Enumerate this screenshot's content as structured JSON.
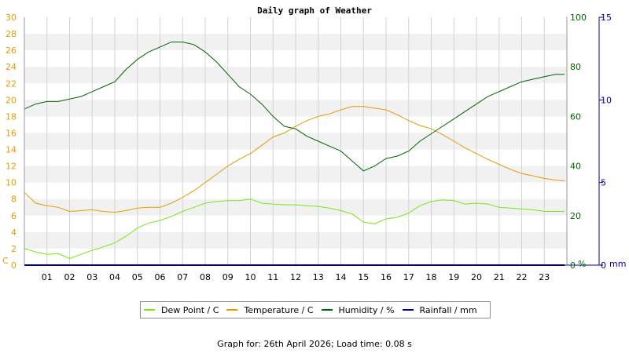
{
  "title": "Daily graph of Weather",
  "footer": "Graph for: 26th April 2026; Load time: 0.08 s",
  "colors": {
    "dew": "#77e61a",
    "temp": "#e69a00",
    "hum": "#006400",
    "rain": "#000099",
    "band": "#f1f1f1",
    "grid": "#d3d3d3"
  },
  "chart_data": {
    "type": "line",
    "title": "Daily graph of Weather",
    "xlabel": "",
    "x_range": [
      0,
      24
    ],
    "x_ticks": [
      "01",
      "02",
      "03",
      "04",
      "05",
      "06",
      "07",
      "08",
      "09",
      "10",
      "11",
      "12",
      "13",
      "14",
      "15",
      "16",
      "17",
      "18",
      "19",
      "20",
      "21",
      "22",
      "23"
    ],
    "axes": {
      "left": {
        "unit": "C",
        "range": [
          0,
          30
        ],
        "ticks": [
          "0",
          "2",
          "4",
          "6",
          "8",
          "10",
          "12",
          "14",
          "16",
          "18",
          "20",
          "22",
          "24",
          "26",
          "28",
          "30"
        ]
      },
      "middle": {
        "unit": "%",
        "range": [
          0,
          100
        ],
        "ticks": [
          "0",
          "20",
          "40",
          "60",
          "80",
          "100"
        ]
      },
      "right": {
        "unit": "mm",
        "range": [
          0,
          15
        ],
        "ticks": [
          "0",
          "5",
          "10",
          "15"
        ]
      }
    },
    "grid": true,
    "legend_position": "bottom",
    "series": [
      {
        "name": "Dew Point / C",
        "axis": "left",
        "color": "#77e61a",
        "x": [
          0,
          0.5,
          1,
          1.5,
          2,
          2.5,
          3,
          3.5,
          4,
          4.5,
          5,
          5.5,
          6,
          6.5,
          7,
          7.5,
          8,
          8.5,
          9,
          9.5,
          10,
          10.5,
          11,
          11.5,
          12,
          12.5,
          13,
          13.5,
          14,
          14.5,
          15,
          15.5,
          16,
          16.5,
          17,
          17.5,
          18,
          18.5,
          19,
          19.5,
          20,
          20.5,
          21,
          21.5,
          22,
          22.5,
          23,
          23.5,
          23.9
        ],
        "y": [
          2.0,
          1.6,
          1.3,
          1.4,
          0.8,
          1.3,
          1.8,
          2.2,
          2.7,
          3.5,
          4.5,
          5.1,
          5.4,
          5.9,
          6.5,
          7.0,
          7.5,
          7.7,
          7.8,
          7.8,
          8.0,
          7.5,
          7.4,
          7.3,
          7.3,
          7.2,
          7.1,
          6.9,
          6.6,
          6.2,
          5.2,
          5.0,
          5.6,
          5.8,
          6.3,
          7.2,
          7.7,
          7.9,
          7.8,
          7.4,
          7.5,
          7.4,
          7.0,
          6.9,
          6.8,
          6.7,
          6.5,
          6.5,
          6.5
        ]
      },
      {
        "name": "Temperature / C",
        "axis": "left",
        "color": "#e69a00",
        "x": [
          0,
          0.5,
          1,
          1.5,
          2,
          2.5,
          3,
          3.5,
          4,
          4.5,
          5,
          5.5,
          6,
          6.5,
          7,
          7.5,
          8,
          8.5,
          9,
          9.5,
          10,
          10.5,
          11,
          11.5,
          12,
          12.5,
          13,
          13.5,
          14,
          14.5,
          15,
          15.5,
          16,
          16.5,
          17,
          17.5,
          18,
          18.5,
          19,
          19.5,
          20,
          20.5,
          21,
          21.5,
          22,
          22.5,
          23,
          23.5,
          23.9
        ],
        "y": [
          8.8,
          7.5,
          7.2,
          7.0,
          6.5,
          6.6,
          6.7,
          6.5,
          6.4,
          6.6,
          6.9,
          7.0,
          7.0,
          7.5,
          8.2,
          9.0,
          10.0,
          11.0,
          12.0,
          12.8,
          13.5,
          14.5,
          15.5,
          16.0,
          16.8,
          17.5,
          18.0,
          18.3,
          18.8,
          19.2,
          19.2,
          19.0,
          18.8,
          18.2,
          17.5,
          16.9,
          16.5,
          15.8,
          15.0,
          14.2,
          13.5,
          12.8,
          12.2,
          11.6,
          11.1,
          10.8,
          10.5,
          10.3,
          10.2
        ]
      },
      {
        "name": "Humidity / %",
        "axis": "middle",
        "color": "#006400",
        "x": [
          0,
          0.5,
          1,
          1.5,
          2,
          2.5,
          3,
          3.5,
          4,
          4.5,
          5,
          5.5,
          6,
          6.5,
          7,
          7.5,
          8,
          8.5,
          9,
          9.5,
          10,
          10.5,
          11,
          11.5,
          12,
          12.5,
          13,
          13.5,
          14,
          14.5,
          15,
          15.5,
          16,
          16.5,
          17,
          17.5,
          18,
          18.5,
          19,
          19.5,
          20,
          20.5,
          21,
          21.5,
          22,
          22.5,
          23,
          23.5,
          23.9
        ],
        "y": [
          63,
          65,
          66,
          66,
          67,
          68,
          70,
          72,
          74,
          79,
          83,
          86,
          88,
          90,
          90,
          89,
          86,
          82,
          77,
          72,
          69,
          65,
          60,
          56,
          55,
          52,
          50,
          48,
          46,
          42,
          38,
          40,
          43,
          44,
          46,
          50,
          53,
          56,
          59,
          62,
          65,
          68,
          70,
          72,
          74,
          75,
          76,
          77,
          77
        ]
      },
      {
        "name": "Rainfall / mm",
        "axis": "right",
        "color": "#000099",
        "x": [
          0,
          23.9
        ],
        "y": [
          0,
          0
        ]
      }
    ]
  }
}
